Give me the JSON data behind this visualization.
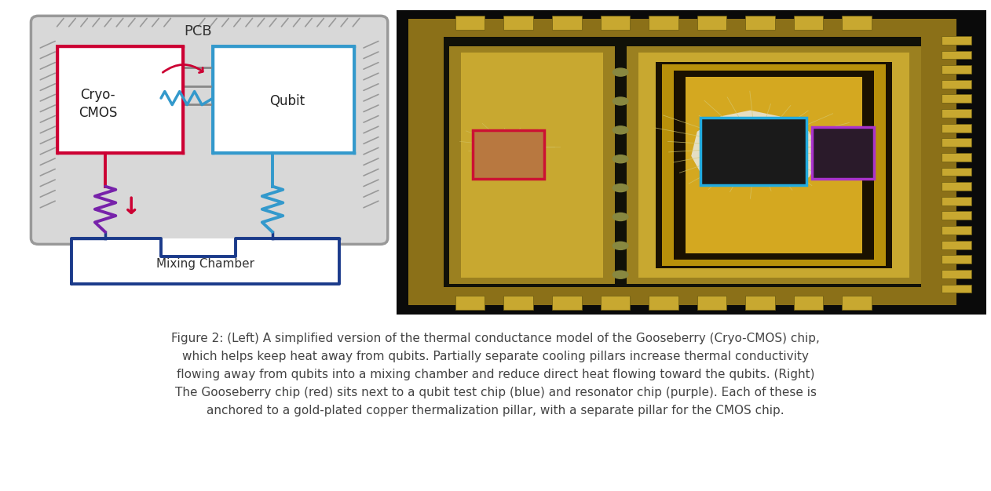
{
  "bg_color": "#ffffff",
  "caption_lines": [
    "Figure 2: (Left) A simplified version of the thermal conductance model of the Gooseberry (Cryo-CMOS) chip,",
    "which helps keep heat away from qubits. Partially separate cooling pillars increase thermal conductivity",
    "flowing away from qubits into a mixing chamber and reduce direct heat flowing toward the qubits. (Right)",
    "The Gooseberry chip (red) sits next to a qubit test chip (blue) and resonator chip (purple). Each of these is",
    "anchored to a gold-plated copper thermalization pillar, with a separate pillar for the CMOS chip."
  ],
  "caption_fontsize": 11.0,
  "caption_color": "#444444",
  "fig_width": 12.62,
  "fig_height": 6.26,
  "red_color": "#cc0033",
  "blue_color": "#3399cc",
  "dark_blue": "#1a3a8a",
  "purple_color": "#8833aa",
  "resistor_purple": "#7722aa",
  "pcb_gray": "#999999",
  "pcb_fill": "#d8d8d8",
  "chip_fill": "#ffffff",
  "wire_gray": "#888888"
}
